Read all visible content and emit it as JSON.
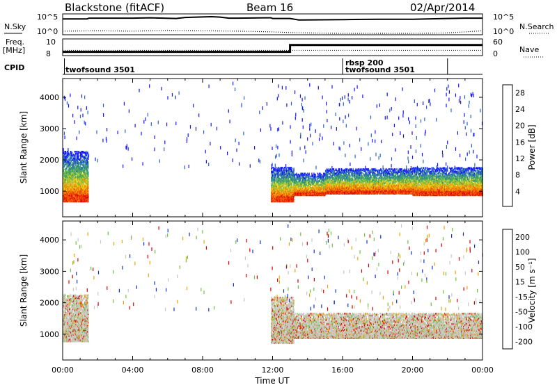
{
  "header": {
    "station": "Blackstone (fitACF)",
    "beam": "Beam 16",
    "date": "02/Apr/2014"
  },
  "chart_data": [
    {
      "type": "line",
      "panel": "noise",
      "left_labels": [
        "N.Sky"
      ],
      "right_labels": [
        "N.Search"
      ],
      "left_ticks": [
        "10^5",
        "10^0"
      ],
      "right_ticks": [
        "10^5",
        "10^0"
      ],
      "series": [
        {
          "name": "N.Sky",
          "style": "solid",
          "x": [
            0,
            1.4,
            1.5,
            4,
            5,
            6.5,
            7,
            8.5,
            9,
            9.5,
            10,
            11.9,
            12,
            13,
            13.5,
            16,
            18,
            20,
            22,
            23,
            24
          ],
          "y": [
            4.2,
            4.2,
            4.4,
            4.4,
            4.5,
            4.3,
            4.6,
            4.8,
            4.7,
            4.4,
            4.4,
            4.5,
            4.3,
            4.3,
            3.9,
            4.0,
            4.1,
            4.1,
            4.3,
            4.4,
            4.4
          ]
        },
        {
          "name": "N.Search",
          "style": "dotted",
          "x": [
            0,
            2,
            4,
            6,
            8,
            10,
            12,
            13,
            14,
            16,
            18,
            20,
            22,
            23,
            24
          ],
          "y": [
            0.8,
            0.9,
            0.8,
            1.0,
            0.9,
            0.8,
            0.6,
            0.4,
            0.3,
            0.2,
            0.2,
            0.2,
            0.3,
            0.6,
            0.9
          ]
        }
      ]
    },
    {
      "type": "line",
      "panel": "frequency",
      "left_labels": [
        "Freq.",
        "[MHz]"
      ],
      "right_labels": [
        "Nave"
      ],
      "left_ticks": [
        "10",
        "8"
      ],
      "right_ticks": [
        "60",
        "0"
      ],
      "series": [
        {
          "name": "Freq.",
          "style": "solid",
          "x": [
            0,
            13.0,
            13.0,
            24
          ],
          "y": [
            8.4,
            8.4,
            9.3,
            9.3
          ]
        },
        {
          "name": "Nave",
          "style": "dotted",
          "x": [
            0,
            24
          ],
          "y": [
            18,
            18
          ]
        }
      ]
    },
    {
      "type": "table",
      "panel": "cpid",
      "label": "CPID",
      "segments": [
        {
          "name": "twofsound 3501",
          "start": 0,
          "end": 16.0
        },
        {
          "name": "rbsp 200",
          "start": 16.0,
          "end": 16.0
        },
        {
          "name": "twofsound 3501",
          "start": 16.0,
          "end": 22.0
        }
      ]
    },
    {
      "type": "heatmap",
      "panel": "power",
      "ylabel": "Slant Range [km]",
      "xlim": [
        0,
        24
      ],
      "ylim": [
        180,
        4600
      ],
      "yticks": [
        1000,
        2000,
        3000,
        4000
      ],
      "colorbar": {
        "label": "Power [dB]",
        "ticks": [
          "4",
          "8",
          "12",
          "16",
          "20",
          "24",
          "28"
        ],
        "colors": [
          "#1414ff",
          "#2864c8",
          "#2e8b8b",
          "#3aa060",
          "#74c040",
          "#e8d020",
          "#f0a000",
          "#f07000",
          "#ee3000",
          "#e00000"
        ]
      },
      "bands": [
        {
          "x0": 0.0,
          "x1": 1.45,
          "lo": 700,
          "hi": 2300
        },
        {
          "x0": 11.9,
          "x1": 13.2,
          "lo": 700,
          "hi": 1800
        },
        {
          "x0": 13.2,
          "x1": 15.0,
          "lo": 900,
          "hi": 1600
        },
        {
          "x0": 15.0,
          "x1": 20.0,
          "lo": 950,
          "hi": 1750
        },
        {
          "x0": 20.0,
          "x1": 24.0,
          "lo": 900,
          "hi": 1800
        }
      ]
    },
    {
      "type": "heatmap",
      "panel": "velocity",
      "ylabel": "Slant Range [km]",
      "xlim": [
        0,
        24
      ],
      "ylim": [
        180,
        4600
      ],
      "yticks": [
        1000,
        2000,
        3000,
        4000
      ],
      "xticks": [
        "00:00",
        "04:00",
        "08:00",
        "12:00",
        "16:00",
        "20:00",
        "00:00"
      ],
      "xlabel": "Time UT",
      "colorbar": {
        "label": "Velocity [m s⁻¹]",
        "ticks": [
          "200",
          "100",
          "50",
          "15",
          "-15",
          "-50",
          "-100",
          "-200"
        ],
        "colors": [
          "#1030d0",
          "#2060a0",
          "#2e8b70",
          "#70c040",
          "#c8c8c0",
          "#f0a000",
          "#f07000",
          "#e00000"
        ]
      },
      "bands": [
        {
          "x0": 0.0,
          "x1": 1.45,
          "lo": 800,
          "hi": 2300
        },
        {
          "x0": 11.9,
          "x1": 13.2,
          "lo": 750,
          "hi": 2200
        },
        {
          "x0": 13.2,
          "x1": 24.0,
          "lo": 900,
          "hi": 1700
        }
      ]
    }
  ]
}
